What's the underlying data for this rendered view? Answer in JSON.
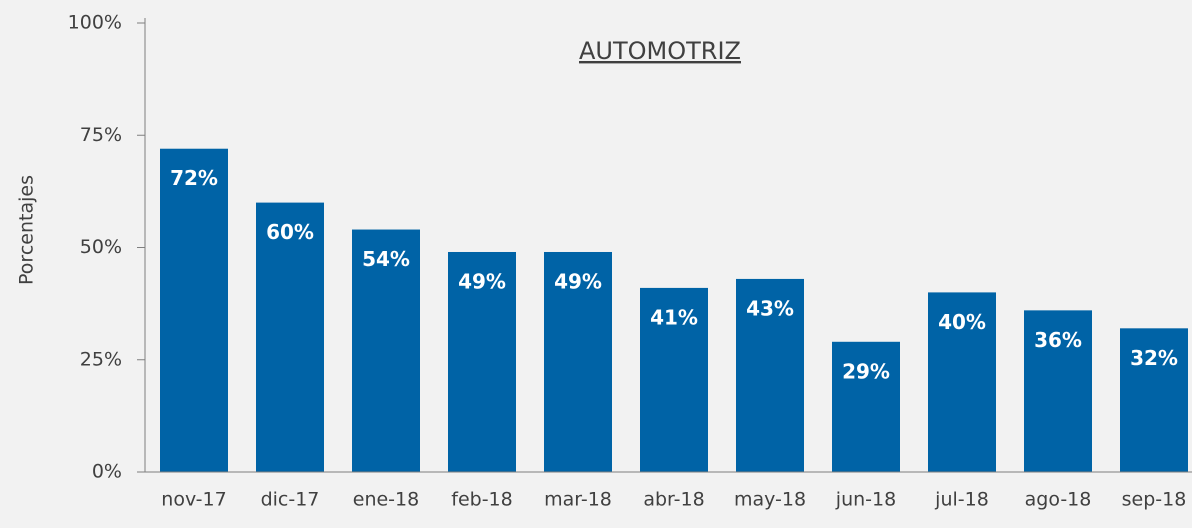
{
  "chart_data": {
    "type": "bar",
    "title": "AUTOMOTRIZ",
    "y_label": "Porcentajes",
    "categories": [
      "nov-17",
      "dic-17",
      "ene-18",
      "feb-18",
      "mar-18",
      "abr-18",
      "may-18",
      "jun-18",
      "jul-18",
      "ago-18",
      "sep-18"
    ],
    "values": [
      72,
      60,
      54,
      49,
      49,
      41,
      43,
      29,
      40,
      36,
      32
    ],
    "value_labels": [
      "72%",
      "60%",
      "54%",
      "49%",
      "49%",
      "41%",
      "43%",
      "29%",
      "40%",
      "36%",
      "32%"
    ],
    "color": "#0063a6",
    "ylim": [
      0,
      100
    ],
    "yticks": [
      {
        "value": 0,
        "label": "0%"
      },
      {
        "value": 25,
        "label": "25%"
      },
      {
        "value": 50,
        "label": "50%"
      },
      {
        "value": 75,
        "label": "75%"
      },
      {
        "value": 100,
        "label": "100%"
      }
    ],
    "grid": false
  }
}
